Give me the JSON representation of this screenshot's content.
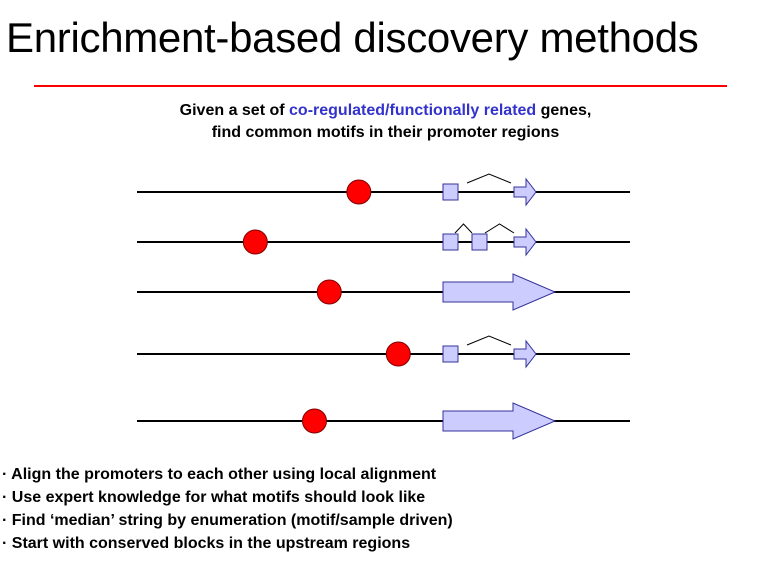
{
  "title": "Enrichment-based discovery methods",
  "subtitle": {
    "line1_prefix": "Given a set of ",
    "line1_highlight": "co-regulated/functionally related",
    "line1_suffix": " genes,",
    "line2": "find common motifs in their promoter regions"
  },
  "colors": {
    "rule": "#ff0000",
    "highlight": "#3333cc",
    "motif": "#ff0000",
    "gene_fill": "#ccccff",
    "gene_stroke": "#333399"
  },
  "genes": [
    {
      "motif_position": 0.45,
      "structure": "one-intron"
    },
    {
      "motif_position": 0.24,
      "structure": "two-introns"
    },
    {
      "motif_position": 0.39,
      "structure": "single-exon"
    },
    {
      "motif_position": 0.53,
      "structure": "one-intron"
    },
    {
      "motif_position": 0.36,
      "structure": "single-exon"
    }
  ],
  "bullets": [
    "· Align the promoters to each other using local alignment",
    "· Use expert knowledge for what motifs should look like",
    "· Find ‘median’ string by enumeration (motif/sample driven)",
    "· Start with conserved blocks in the upstream regions"
  ]
}
